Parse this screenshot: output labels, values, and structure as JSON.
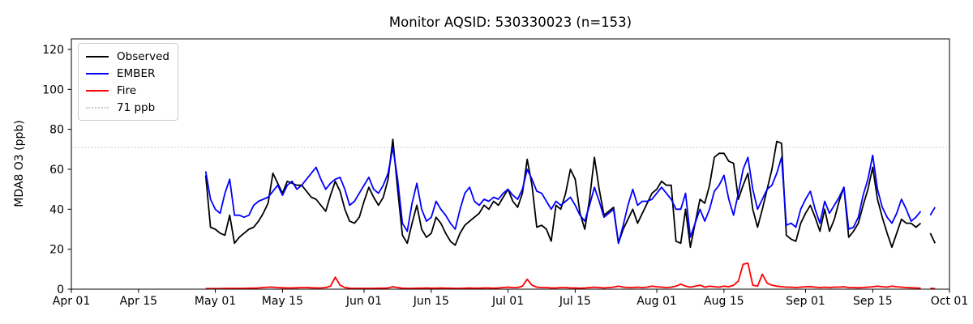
{
  "title": "Monitor AQSID: 530330023 (n=153)",
  "colors": {
    "observed": "#000000",
    "ember": "#0000ff",
    "fire": "#ff0000",
    "threshold": "#c8c8c8",
    "axis": "#000000",
    "background": "#ffffff"
  },
  "chart_data": {
    "type": "line",
    "title": "Monitor AQSID: 530330023 (n=153)",
    "xlabel": "",
    "ylabel": "MDA8 O3 (ppb)",
    "ylim": [
      0,
      125
    ],
    "yticks": [
      0,
      20,
      40,
      60,
      80,
      100,
      120
    ],
    "grid": false,
    "x_axis": {
      "unit": "date",
      "total_days": 183,
      "tick_days": [
        0,
        14,
        30,
        44,
        61,
        75,
        91,
        105,
        122,
        136,
        153,
        167,
        183
      ],
      "tick_labels": [
        "Apr 01",
        "Apr 15",
        "May 01",
        "May 15",
        "Jun 01",
        "Jun 15",
        "Jul 01",
        "Jul 15",
        "Aug 01",
        "Aug 15",
        "Sep 01",
        "Sep 15",
        "Oct 01"
      ]
    },
    "threshold": {
      "value": 71,
      "label": "71 ppb",
      "style": "dotted",
      "color": "#c8c8c8"
    },
    "legend": {
      "position": "upper left",
      "entries": [
        "Observed",
        "EMBER",
        "Fire",
        "71 ppb"
      ]
    },
    "series_start_day": 28,
    "series": [
      {
        "name": "Observed",
        "color": "#000000",
        "values": [
          57,
          31,
          30,
          28,
          27,
          37,
          23,
          26,
          28,
          30,
          31,
          34,
          38,
          43,
          58,
          53,
          48,
          54,
          53,
          52,
          52,
          49,
          46,
          45,
          42,
          39,
          47,
          54,
          49,
          40,
          34,
          33,
          36,
          44,
          51,
          46,
          42,
          46,
          55,
          75,
          50,
          27,
          23,
          33,
          42,
          30,
          26,
          28,
          36,
          33,
          28,
          24,
          22,
          28,
          32,
          34,
          36,
          38,
          42,
          40,
          44,
          42,
          46,
          50,
          44,
          41,
          48,
          65,
          52,
          31,
          32,
          30,
          24,
          42,
          40,
          48,
          60,
          55,
          38,
          30,
          45,
          66,
          50,
          37,
          39,
          41,
          23,
          30,
          35,
          40,
          33,
          38,
          43,
          48,
          50,
          54,
          52,
          52,
          24,
          23,
          40,
          21,
          33,
          45,
          43,
          52,
          66,
          68,
          68,
          64,
          63,
          45,
          52,
          58,
          40,
          31,
          40,
          50,
          60,
          74,
          73,
          27,
          25,
          24,
          33,
          38,
          42,
          36,
          29,
          40,
          29,
          35,
          44,
          51,
          26,
          29,
          33,
          42,
          50,
          61,
          45,
          36,
          28,
          21,
          28,
          35,
          33,
          33,
          31,
          33,
          null,
          28,
          23
        ]
      },
      {
        "name": "EMBER",
        "color": "#0000ff",
        "values": [
          59,
          45,
          40,
          38,
          48,
          55,
          37,
          37,
          36,
          37,
          42,
          44,
          45,
          46,
          49,
          52,
          47,
          52,
          54,
          50,
          52,
          55,
          58,
          61,
          55,
          50,
          53,
          55,
          56,
          50,
          42,
          44,
          48,
          52,
          56,
          50,
          48,
          52,
          58,
          71,
          55,
          33,
          29,
          43,
          53,
          40,
          34,
          36,
          44,
          40,
          37,
          33,
          30,
          40,
          48,
          51,
          44,
          42,
          45,
          44,
          46,
          45,
          48,
          50,
          47,
          45,
          50,
          60,
          55,
          49,
          48,
          44,
          40,
          44,
          42,
          44,
          46,
          42,
          37,
          34,
          42,
          51,
          44,
          36,
          38,
          40,
          23,
          32,
          42,
          50,
          42,
          44,
          44,
          45,
          48,
          51,
          48,
          45,
          40,
          40,
          48,
          26,
          33,
          40,
          34,
          40,
          49,
          52,
          57,
          45,
          37,
          48,
          60,
          66,
          50,
          40,
          45,
          50,
          52,
          58,
          66,
          32,
          33,
          31,
          40,
          45,
          49,
          40,
          33,
          44,
          38,
          42,
          46,
          51,
          30,
          31,
          36,
          47,
          55,
          67,
          50,
          41,
          36,
          33,
          38,
          45,
          40,
          34,
          36,
          39,
          null,
          37,
          41
        ]
      },
      {
        "name": "Fire",
        "color": "#ff0000",
        "values": [
          0.3,
          0.3,
          0.3,
          0.3,
          0.4,
          0.4,
          0.4,
          0.4,
          0.4,
          0.5,
          0.5,
          0.6,
          0.8,
          1.0,
          1.0,
          0.8,
          0.7,
          0.6,
          0.6,
          0.7,
          0.8,
          0.8,
          0.7,
          0.6,
          0.6,
          0.8,
          1.5,
          6.0,
          2.0,
          0.8,
          0.5,
          0.4,
          0.4,
          0.4,
          0.4,
          0.4,
          0.5,
          0.5,
          0.6,
          1.2,
          0.8,
          0.5,
          0.4,
          0.4,
          0.5,
          0.5,
          0.6,
          0.5,
          0.5,
          0.6,
          0.5,
          0.5,
          0.4,
          0.4,
          0.5,
          0.6,
          0.5,
          0.5,
          0.6,
          0.6,
          0.5,
          0.6,
          0.8,
          1.0,
          0.8,
          0.8,
          1.5,
          5.0,
          2.0,
          1.0,
          0.8,
          0.8,
          0.6,
          0.6,
          0.8,
          0.8,
          0.6,
          0.6,
          0.5,
          0.6,
          0.8,
          1.0,
          0.8,
          0.6,
          0.8,
          1.0,
          1.5,
          1.0,
          0.8,
          0.8,
          1.0,
          0.8,
          1.0,
          1.5,
          1.2,
          1.0,
          0.8,
          1.0,
          1.5,
          2.5,
          1.5,
          1.0,
          1.5,
          2.0,
          1.0,
          1.5,
          1.2,
          1.0,
          1.5,
          1.2,
          2.0,
          4.0,
          12.5,
          13.0,
          2.0,
          1.5,
          7.5,
          3.0,
          2.0,
          1.5,
          1.2,
          1.0,
          1.0,
          0.8,
          1.0,
          1.2,
          1.3,
          1.0,
          0.8,
          1.0,
          0.8,
          1.0,
          1.0,
          1.2,
          0.8,
          0.8,
          0.7,
          0.8,
          1.0,
          1.2,
          1.5,
          1.2,
          1.0,
          1.5,
          1.2,
          1.0,
          0.8,
          0.7,
          0.6,
          0.5,
          null,
          0.4,
          0.3
        ]
      }
    ]
  }
}
